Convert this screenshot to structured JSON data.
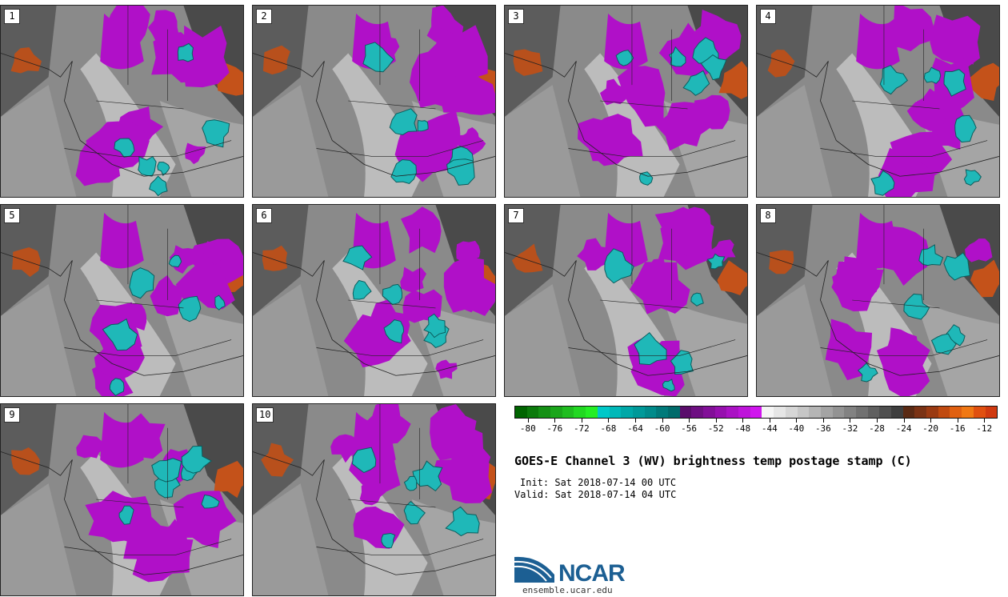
{
  "panels": [
    {
      "label": "1"
    },
    {
      "label": "2"
    },
    {
      "label": "3"
    },
    {
      "label": "4"
    },
    {
      "label": "5"
    },
    {
      "label": "6"
    },
    {
      "label": "7"
    },
    {
      "label": "8"
    },
    {
      "label": "9"
    },
    {
      "label": "10"
    }
  ],
  "colorbar": {
    "colors": [
      "#006400",
      "#0b7a0b",
      "#149014",
      "#1aa61a",
      "#1fbd1f",
      "#22d822",
      "#25ee25",
      "#00c8c8",
      "#00b8b8",
      "#00a8a8",
      "#009999",
      "#008b8b",
      "#007a7a",
      "#006b6b",
      "#5a0d6b",
      "#6e0f82",
      "#820f98",
      "#9610ae",
      "#aa12c4",
      "#be14da",
      "#d016ee",
      "#f5f5f5",
      "#e6e6e6",
      "#d6d6d6",
      "#c6c6c6",
      "#b5b5b5",
      "#a4a4a4",
      "#939393",
      "#828282",
      "#717171",
      "#606060",
      "#4f4f4f",
      "#3e3e3e",
      "#5a2a14",
      "#7a3214",
      "#9a3a12",
      "#c04a10",
      "#e06010",
      "#f07814",
      "#e05010",
      "#d03a10"
    ],
    "tick_labels": [
      "-80",
      "-76",
      "-72",
      "-68",
      "-64",
      "-60",
      "-56",
      "-52",
      "-48",
      "-44",
      "-40",
      "-36",
      "-32",
      "-28",
      "-24",
      "-20",
      "-16",
      "-12"
    ],
    "min": -82,
    "max": -10
  },
  "title": "GOES-E Channel 3 (WV) brightness temp postage stamp (C)",
  "init_text": "Init: Sat 2018-07-14 00 UTC",
  "valid_text": "Valid: Sat 2018-07-14 04 UTC",
  "logo": {
    "name": "NCAR",
    "brand_color": "#1c5f93"
  },
  "site": "ensemble.ucar.edu"
}
